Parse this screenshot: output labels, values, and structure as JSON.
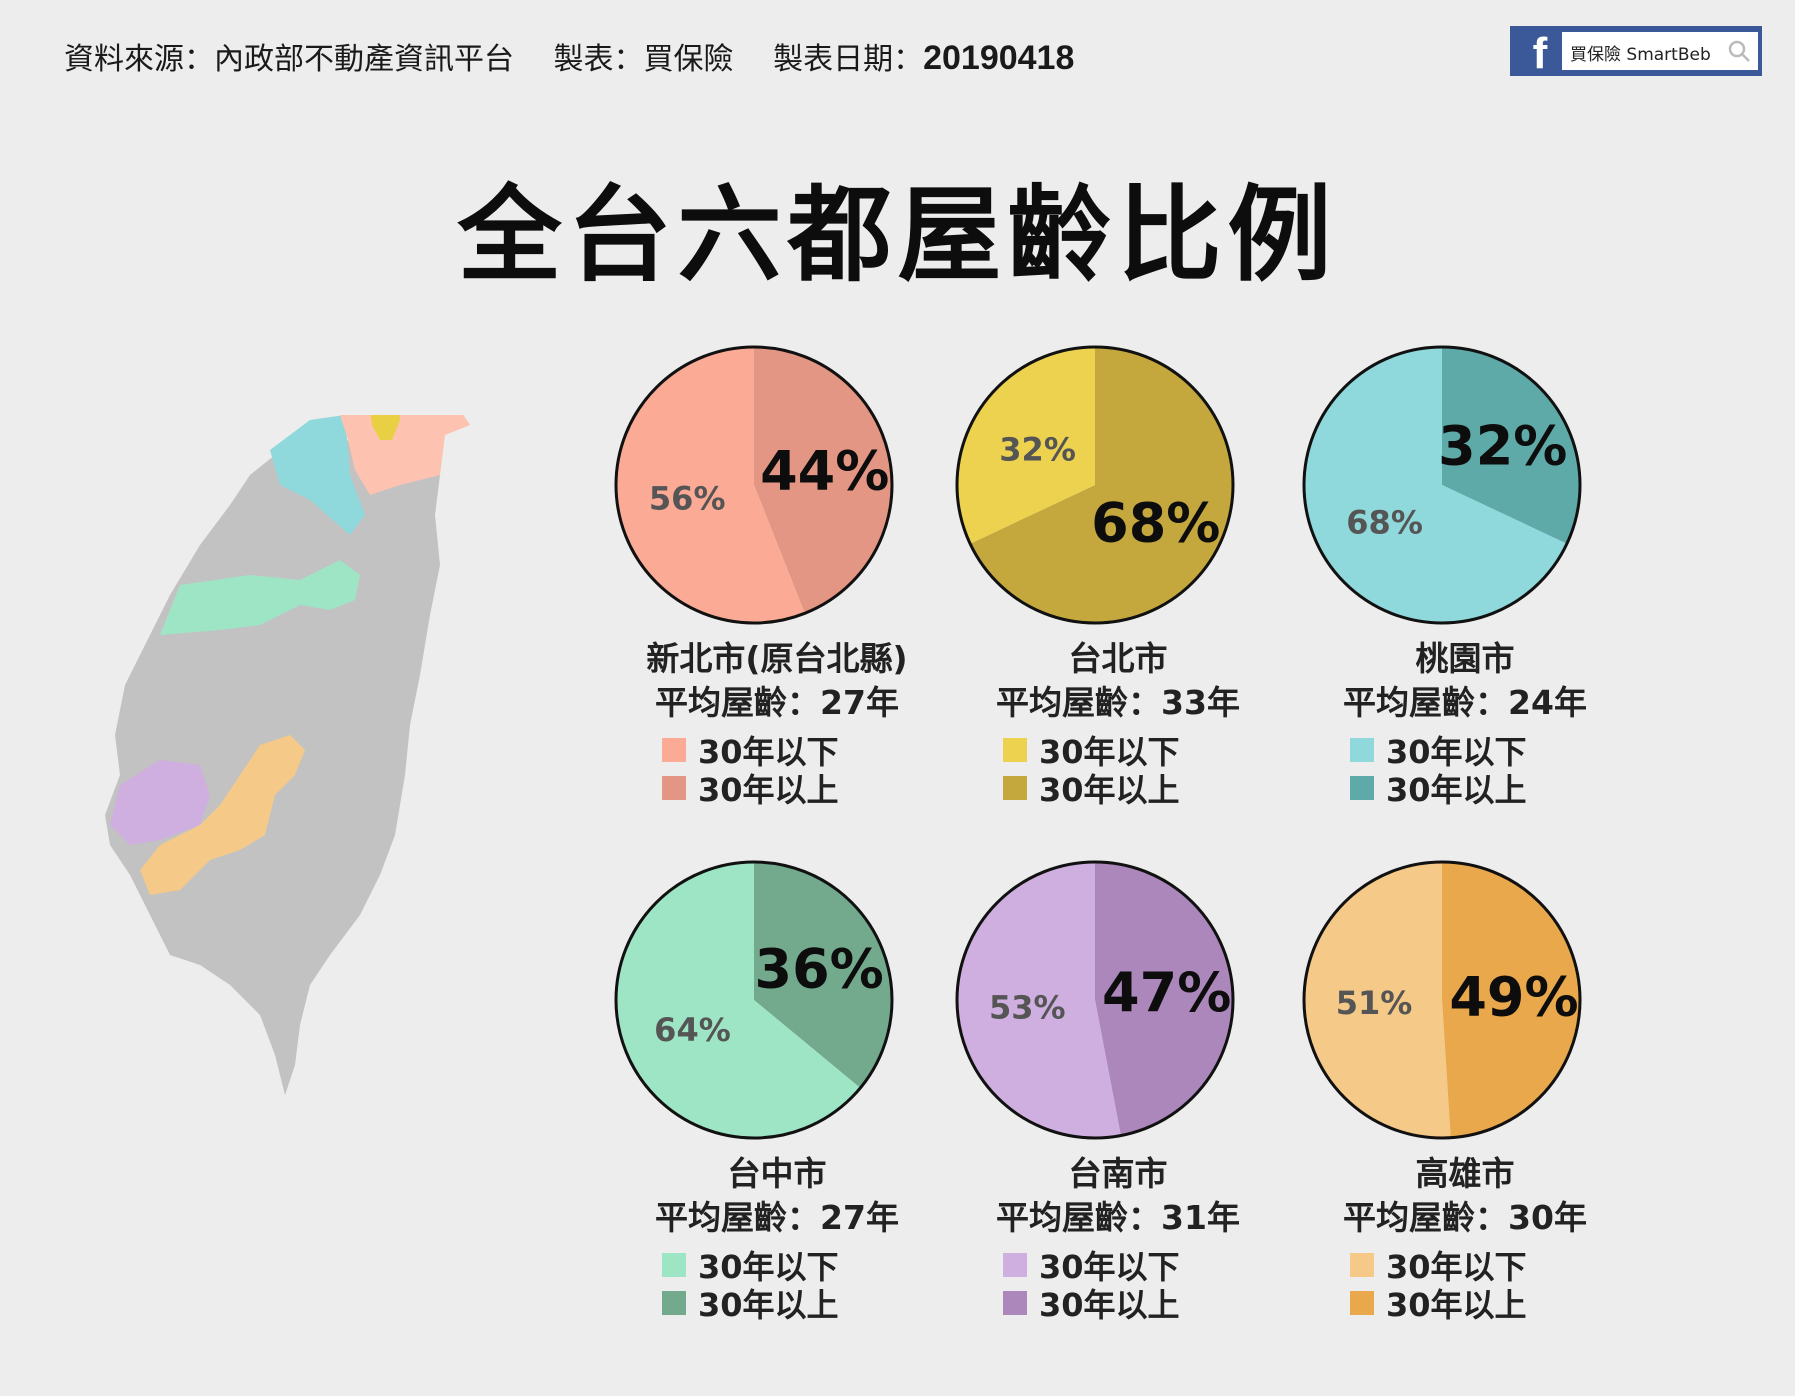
{
  "header": {
    "source_label": "資料來源：內政部不動產資訊平台",
    "maker_label": "製表：買保險",
    "date_label": "製表日期：",
    "date_value": "20190418"
  },
  "facebook_badge": {
    "logo": "f",
    "page_name": "買保險 SmartBeb",
    "icon": "search-icon"
  },
  "title": "全台六都屋齡比例",
  "map": {
    "description_colors": {
      "base": "#c2c2c2",
      "new_taipei": "#fdc2b0",
      "taipei": "#e9cf44",
      "taoyuan": "#8fd8dc",
      "taichung": "#9ee5c6",
      "tainan": "#cfaee0",
      "kaohsiung": "#f5c987"
    }
  },
  "chart_data": [
    {
      "type": "pie",
      "city": "新北市(原台北縣)",
      "avg_label": "平均屋齡：27年",
      "slices": [
        {
          "label": "30年以下",
          "value": 56,
          "display": "56%",
          "color": "#fbaa96"
        },
        {
          "label": "30年以上",
          "value": 44,
          "display": "44%",
          "color": "#e49684"
        }
      ]
    },
    {
      "type": "pie",
      "city": "台北市",
      "avg_label": "平均屋齡：33年",
      "slices": [
        {
          "label": "30年以下",
          "value": 32,
          "display": "32%",
          "color": "#ecd24f"
        },
        {
          "label": "30年以上",
          "value": 68,
          "display": "68%",
          "color": "#c4a83e"
        }
      ]
    },
    {
      "type": "pie",
      "city": "桃園市",
      "avg_label": "平均屋齡：24年",
      "slices": [
        {
          "label": "30年以下",
          "value": 68,
          "display": "68%",
          "color": "#8fd8dc"
        },
        {
          "label": "30年以上",
          "value": 32,
          "display": "32%",
          "color": "#5eaaa8"
        }
      ]
    },
    {
      "type": "pie",
      "city": "台中市",
      "avg_label": "平均屋齡：27年",
      "slices": [
        {
          "label": "30年以下",
          "value": 64,
          "display": "64%",
          "color": "#9ee5c6"
        },
        {
          "label": "30年以上",
          "value": 36,
          "display": "36%",
          "color": "#73aa8e"
        }
      ]
    },
    {
      "type": "pie",
      "city": "台南市",
      "avg_label": "平均屋齡：31年",
      "slices": [
        {
          "label": "30年以下",
          "value": 53,
          "display": "53%",
          "color": "#cfaee0"
        },
        {
          "label": "30年以上",
          "value": 47,
          "display": "47%",
          "color": "#ac87bb"
        }
      ]
    },
    {
      "type": "pie",
      "city": "高雄市",
      "avg_label": "平均屋齡：30年",
      "slices": [
        {
          "label": "30年以下",
          "value": 51,
          "display": "51%",
          "color": "#f5c987"
        },
        {
          "label": "30年以上",
          "value": 49,
          "display": "49%",
          "color": "#e9a84c"
        }
      ]
    }
  ]
}
